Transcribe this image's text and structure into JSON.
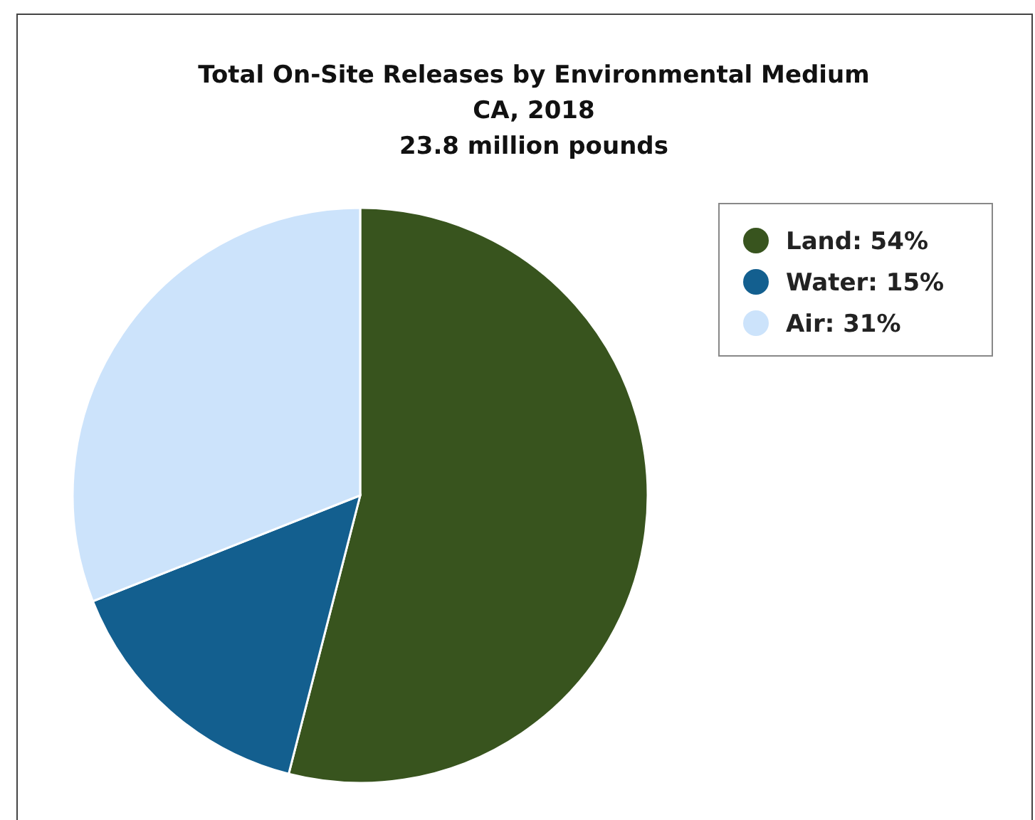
{
  "chart_data": {
    "type": "pie",
    "title": "Total On-Site Releases by Environmental Medium",
    "subtitle": "CA, 2018\n23.8 million pounds",
    "categories": [
      "Land: 54%",
      "Water: 15%",
      "Air: 31%"
    ],
    "values": [
      54,
      15,
      31
    ],
    "colors": [
      "#38541e",
      "#135f8f",
      "#cce3fb"
    ],
    "legend": "top right"
  }
}
